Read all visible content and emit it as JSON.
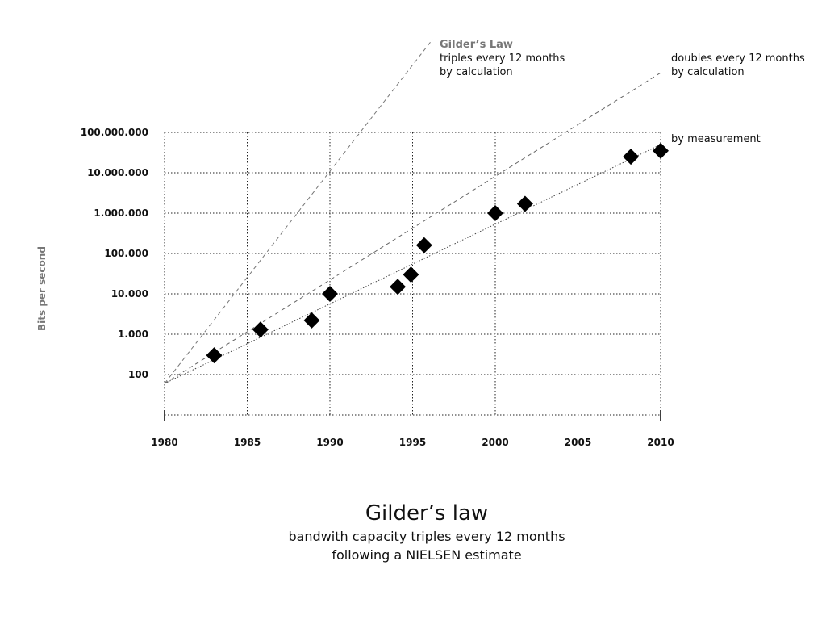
{
  "chart_data": {
    "type": "scatter",
    "title": "Gilder’s law",
    "subtitle_lines": [
      "bandwith capacity triples every 12 months",
      "following a NIELSEN estimate"
    ],
    "xlabel": "",
    "ylabel": "Bits per second",
    "x_ticks": [
      "1980",
      "1985",
      "1990",
      "1995",
      "2000",
      "2005",
      "2010"
    ],
    "x_tick_values": [
      1980,
      1985,
      1990,
      1995,
      2000,
      2005,
      2010
    ],
    "y_ticks": [
      "100",
      "1.000",
      "10.000",
      "100.000",
      "1.000.000",
      "10.000.000",
      "100.000.000"
    ],
    "y_tick_values": [
      100,
      1000,
      10000,
      100000,
      1000000,
      10000000,
      100000000
    ],
    "y_scale": "log",
    "xlim": [
      1980,
      2010
    ],
    "ylim": [
      10,
      100000000
    ],
    "grid": true,
    "series": [
      {
        "name": "by measurement",
        "marker": "diamond",
        "color": "#000000",
        "points": [
          {
            "x": 1983,
            "y": 300
          },
          {
            "x": 1985.8,
            "y": 1300
          },
          {
            "x": 1988.9,
            "y": 2200
          },
          {
            "x": 1990,
            "y": 10000
          },
          {
            "x": 1994.1,
            "y": 15000
          },
          {
            "x": 1994.9,
            "y": 30000
          },
          {
            "x": 1995.7,
            "y": 160000
          },
          {
            "x": 2000,
            "y": 1000000
          },
          {
            "x": 2001.8,
            "y": 1700000
          },
          {
            "x": 2008.2,
            "y": 25000000
          },
          {
            "x": 2010,
            "y": 35000000
          }
        ]
      }
    ],
    "trend_lines": [
      {
        "name": "Gilder’s Law triples every 12 months by calculation",
        "style": "dashed",
        "color": "#777777",
        "from": {
          "x": 1980,
          "y": 60
        },
        "to": {
          "x": 1996.2,
          "y": 20000000000
        }
      },
      {
        "name": "doubles every 12 months by calculation",
        "style": "dashed",
        "color": "#666666",
        "from": {
          "x": 1980,
          "y": 60
        },
        "to": {
          "x": 2010,
          "y": 3000000000
        }
      },
      {
        "name": "by measurement",
        "style": "dotted",
        "color": "#444444",
        "from": {
          "x": 1980,
          "y": 60
        },
        "to": {
          "x": 2010,
          "y": 50000000
        }
      }
    ],
    "annotations": {
      "gilder_name": "Gilder’s Law",
      "gilder_line1": "triples every 12 months",
      "gilder_line2": "by calculation",
      "doubles_line1": "doubles every 12 months",
      "doubles_line2": "by calculation",
      "measurement": "by measurement"
    }
  }
}
